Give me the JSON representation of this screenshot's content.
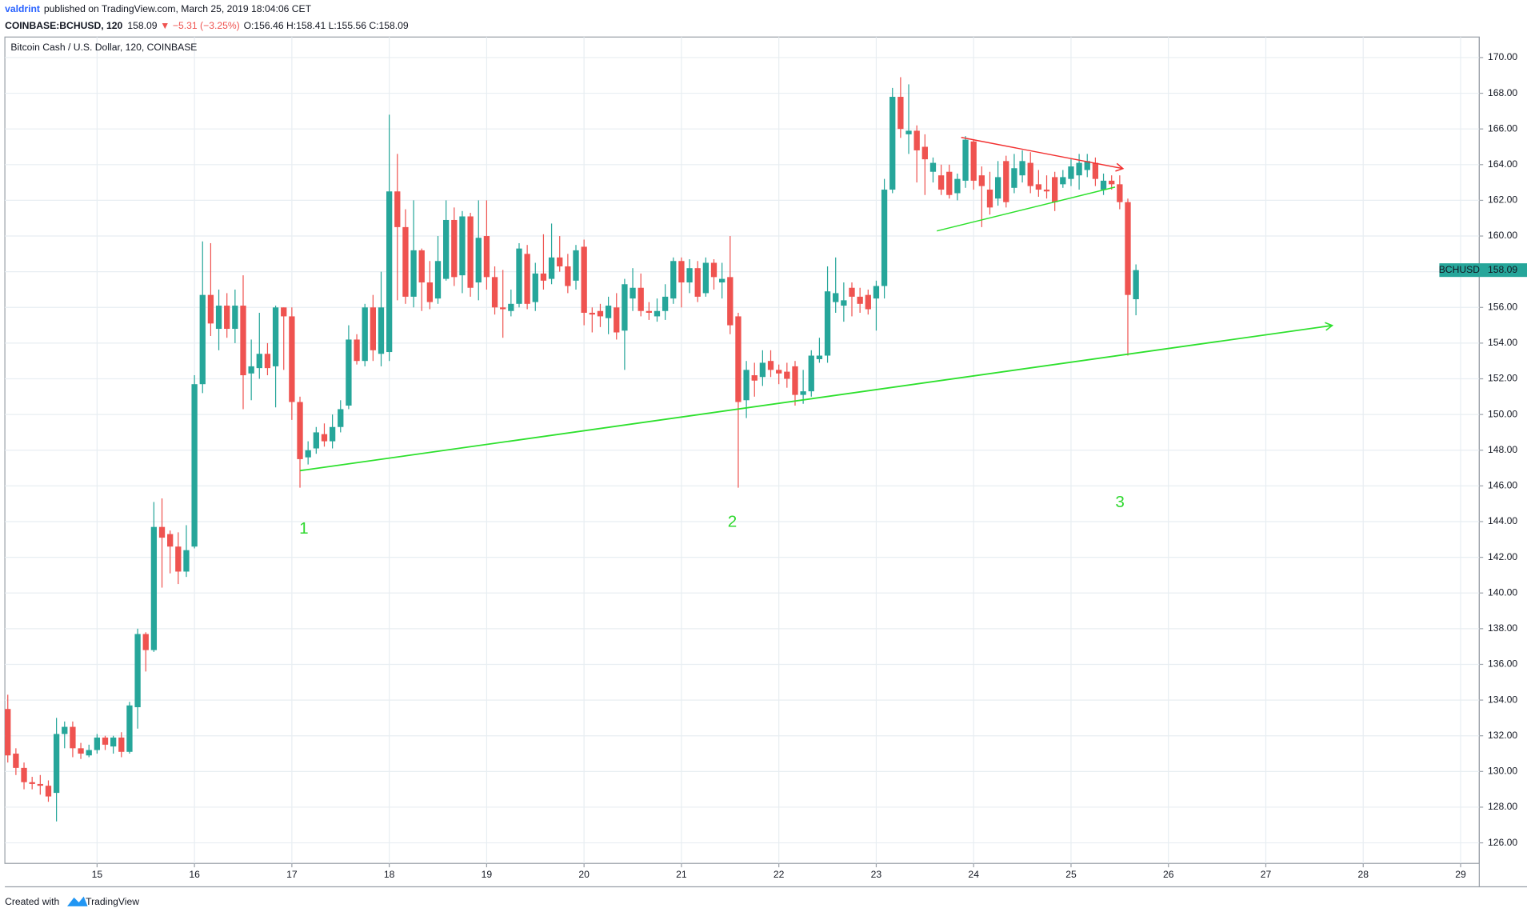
{
  "header": {
    "author": "valdrint",
    "published": "published on TradingView.com, March 25, 2019 18:04:06 CET",
    "symbol": "COINBASE:BCHUSD, 120",
    "last": "158.09",
    "arrow": "▼",
    "change": "−5.31 (−3.25%)",
    "ohlc": "O:156.46 H:158.41 L:155.56 C:158.09"
  },
  "footer": {
    "created": "Created with",
    "brand": "TradingView"
  },
  "chart_data": {
    "type": "candlestick",
    "title": "Bitcoin Cash / U.S. Dollar, 120, COINBASE",
    "symbol_tag": "BCHUSD",
    "up_color": "#26a69a",
    "down_color": "#ef5350",
    "grid": true,
    "annotations": [
      "1",
      "2",
      "3"
    ],
    "ylim": [
      124.85,
      171.15
    ],
    "yticks": [
      {
        "value": 126,
        "label": "126.00"
      },
      {
        "value": 128,
        "label": "128.00"
      },
      {
        "value": 130,
        "label": "130.00"
      },
      {
        "value": 132,
        "label": "132.00"
      },
      {
        "value": 134,
        "label": "134.00"
      },
      {
        "value": 136,
        "label": "136.00"
      },
      {
        "value": 138,
        "label": "138.00"
      },
      {
        "value": 140,
        "label": "140.00"
      },
      {
        "value": 142,
        "label": "142.00"
      },
      {
        "value": 144,
        "label": "144.00"
      },
      {
        "value": 146,
        "label": "146.00"
      },
      {
        "value": 148,
        "label": "148.00"
      },
      {
        "value": 150,
        "label": "150.00"
      },
      {
        "value": 152,
        "label": "152.00"
      },
      {
        "value": 154,
        "label": "154.00"
      },
      {
        "value": 156,
        "label": "156.00"
      },
      {
        "value": 158,
        "label": "158.00"
      },
      {
        "value": 160,
        "label": "160.00"
      },
      {
        "value": 162,
        "label": "162.00"
      },
      {
        "value": 164,
        "label": "164.00"
      },
      {
        "value": 166,
        "label": "166.00"
      },
      {
        "value": 168,
        "label": "168.00"
      },
      {
        "value": 170,
        "label": "170.00"
      }
    ],
    "xlim": [
      -0.36,
      181.3
    ],
    "xticks": [
      {
        "value": 11,
        "label": "15"
      },
      {
        "value": 23,
        "label": "16"
      },
      {
        "value": 35,
        "label": "17"
      },
      {
        "value": 47,
        "label": "18"
      },
      {
        "value": 59,
        "label": "19"
      },
      {
        "value": 71,
        "label": "20"
      },
      {
        "value": 83,
        "label": "21"
      },
      {
        "value": 95,
        "label": "22"
      },
      {
        "value": 107,
        "label": "23"
      },
      {
        "value": 119,
        "label": "24"
      },
      {
        "value": 131,
        "label": "25"
      },
      {
        "value": 143,
        "label": "26"
      },
      {
        "value": 155,
        "label": "27"
      },
      {
        "value": 167,
        "label": "28"
      },
      {
        "value": 179,
        "label": "29"
      }
    ],
    "open": [
      133.5,
      131,
      130.2,
      129.4,
      129.3,
      129.2,
      128.8,
      132.1,
      132.5,
      131.3,
      130.9,
      131.2,
      131.9,
      131.4,
      131.9,
      131.1,
      133.6,
      137.7,
      136.8,
      143.7,
      143.3,
      142.6,
      141.2,
      142.6,
      151.7,
      156.7,
      154.8,
      156.1,
      154.8,
      156.1,
      152.3,
      152.6,
      153.4,
      152.7,
      156,
      155.5,
      150.7,
      147.6,
      148.1,
      148.9,
      148.5,
      149.3,
      150.5,
      154.2,
      153,
      156,
      153.4,
      153.5,
      162.5,
      160.5,
      156.6,
      159.2,
      157.4,
      156.5,
      157.6,
      160.9,
      157.8,
      161.1,
      157.4,
      160,
      157.7,
      156,
      155.8,
      156.2,
      159,
      156.3,
      157.9,
      157.6,
      158.8,
      158.3,
      157.5,
      159.4,
      155.7,
      155.8,
      155.4,
      156,
      154.7,
      156.5,
      157.1,
      155.8,
      155.5,
      155.8,
      156.5,
      158.6,
      157.4,
      158.2,
      156.8,
      158.5,
      157.4,
      157.7,
      155.5,
      150.8,
      152.2,
      152.1,
      153,
      152.5,
      152.4,
      152.7,
      151.1,
      151.3,
      153.1,
      153.3,
      156.3,
      156.1,
      157.1,
      156.6,
      156.7,
      156.5,
      157.2,
      162.6,
      167.8,
      165.7,
      165.9,
      165,
      163.6,
      163.4,
      163.6,
      162.4,
      163.1,
      165.3,
      163.4,
      162.6,
      162.1,
      164.2,
      162.7,
      163.4,
      164.1,
      162.9,
      162.6,
      163.3,
      162.9,
      163.2,
      163.4,
      163.7,
      164.1,
      162.6,
      163.1,
      162.9,
      161.9,
      156.46
    ],
    "high": [
      134.3,
      131.3,
      130.5,
      129.7,
      129.8,
      129.5,
      133,
      132.8,
      132.8,
      131.6,
      131.5,
      132.1,
      132,
      132,
      132.2,
      133.9,
      138,
      137.8,
      145.1,
      145.3,
      143.5,
      143.4,
      143.8,
      152.2,
      159.7,
      159.6,
      157,
      156.8,
      157,
      157.8,
      154.2,
      155.7,
      154,
      156.1,
      156,
      156,
      151,
      148.5,
      149.3,
      149.5,
      150,
      150.8,
      155,
      154.5,
      156.2,
      156.7,
      158,
      166.8,
      164.6,
      161.5,
      162,
      159.3,
      158.6,
      160,
      162,
      161.6,
      161.4,
      161.3,
      162,
      162,
      158.3,
      158.1,
      157,
      159.6,
      159.5,
      158.5,
      160.1,
      160.7,
      160,
      159,
      159.5,
      159.8,
      156,
      156.2,
      156.6,
      156.8,
      157.6,
      158.2,
      157.9,
      156.3,
      156.5,
      157.3,
      158.8,
      158.8,
      158.7,
      158.6,
      158.8,
      158.7,
      158.5,
      160,
      155.7,
      153,
      152.9,
      153.6,
      153.6,
      152.8,
      152.9,
      153,
      152.5,
      153.6,
      154.3,
      158.3,
      158.8,
      157.4,
      157.4,
      157.1,
      157,
      157.5,
      163.2,
      168.3,
      168.9,
      168.5,
      166.2,
      165.7,
      164.4,
      164,
      164,
      163.5,
      165.6,
      165.4,
      163.9,
      163.6,
      164.2,
      164.5,
      164.6,
      164.8,
      164.7,
      163.7,
      163.4,
      163.6,
      163.7,
      164.3,
      164.6,
      164.6,
      164.4,
      163.5,
      163.4,
      163.4,
      162.1,
      158.41
    ],
    "low": [
      130.5,
      129.8,
      129,
      129,
      128.7,
      128.3,
      127.2,
      131.3,
      130.8,
      130.7,
      130.8,
      131,
      131.2,
      131,
      130.8,
      131,
      132.4,
      135.6,
      136.7,
      140.3,
      141.1,
      140.5,
      140.9,
      142.5,
      151.2,
      154.4,
      153.6,
      154.3,
      154,
      150.3,
      150.8,
      152,
      152.2,
      150.4,
      152.5,
      149.7,
      145.9,
      147.2,
      147.8,
      148.2,
      148.1,
      149,
      150.3,
      152.8,
      152.7,
      153,
      152.7,
      153,
      156.4,
      156.2,
      156,
      155.8,
      155.9,
      156.2,
      157.5,
      157.2,
      156.8,
      156.6,
      156.4,
      157,
      155.6,
      154.3,
      155.5,
      156,
      155.9,
      155.8,
      157,
      157.3,
      158,
      156.8,
      157,
      155,
      154.6,
      154.9,
      154.5,
      154.2,
      152.5,
      155.8,
      155.5,
      155.3,
      155.2,
      155.3,
      156.2,
      156,
      156.8,
      156.3,
      156.6,
      157,
      156.5,
      154.5,
      145.9,
      149.8,
      151,
      151.6,
      152.1,
      151.7,
      151.5,
      150.5,
      150.6,
      151,
      152.9,
      152.9,
      155.7,
      155.2,
      155.5,
      155.7,
      155.6,
      154.7,
      156.5,
      162.4,
      165.5,
      164.6,
      163,
      162.3,
      163,
      162.3,
      162.1,
      162,
      162.7,
      162.6,
      160.5,
      161.2,
      161.7,
      161.6,
      162.4,
      163,
      162.4,
      162.2,
      162.1,
      161.4,
      162.7,
      162.8,
      162.6,
      163.3,
      162.8,
      162.3,
      162.6,
      161.5,
      153.3,
      155.56
    ],
    "close": [
      130.9,
      130.2,
      129.4,
      129.3,
      129.2,
      128.6,
      132.1,
      132.5,
      131.3,
      131,
      131.2,
      131.9,
      131.5,
      131.9,
      131.1,
      133.7,
      137.7,
      136.8,
      143.7,
      143.1,
      142.6,
      141.2,
      142.4,
      151.7,
      156.7,
      155.1,
      156.1,
      154.8,
      156.1,
      152.2,
      152.7,
      153.4,
      152.6,
      156,
      155.5,
      150.7,
      147.5,
      148,
      149,
      148.5,
      149.3,
      150.3,
      154.2,
      153,
      156,
      153.6,
      156,
      162.5,
      160.5,
      156.6,
      159.2,
      157.4,
      156.3,
      158.6,
      160.9,
      157.7,
      161.1,
      157.1,
      159.9,
      157.7,
      156,
      155.9,
      156.2,
      159.3,
      156.2,
      157.9,
      157.5,
      158.8,
      158.3,
      157.2,
      159.2,
      155.7,
      155.6,
      155.5,
      156.1,
      154.6,
      157.3,
      157.1,
      155.8,
      155.7,
      155.8,
      156.6,
      158.6,
      157.4,
      158.2,
      156.6,
      158.5,
      157.7,
      157.6,
      155,
      150.7,
      152.5,
      151.9,
      152.9,
      152.5,
      152.3,
      152,
      151.1,
      151.3,
      153.3,
      153.3,
      156.9,
      156.8,
      156.4,
      156.6,
      156.2,
      155.9,
      157.2,
      162.6,
      167.8,
      166,
      165.9,
      164.8,
      164.3,
      164.1,
      162.6,
      162.3,
      163.2,
      165.4,
      163.1,
      162.8,
      161.6,
      163.3,
      161.9,
      163.8,
      164.2,
      162.8,
      162.6,
      162.5,
      161.9,
      163.3,
      163.9,
      164.1,
      164.2,
      163.2,
      163.1,
      162.9,
      161.9,
      156.7,
      158.09
    ]
  }
}
